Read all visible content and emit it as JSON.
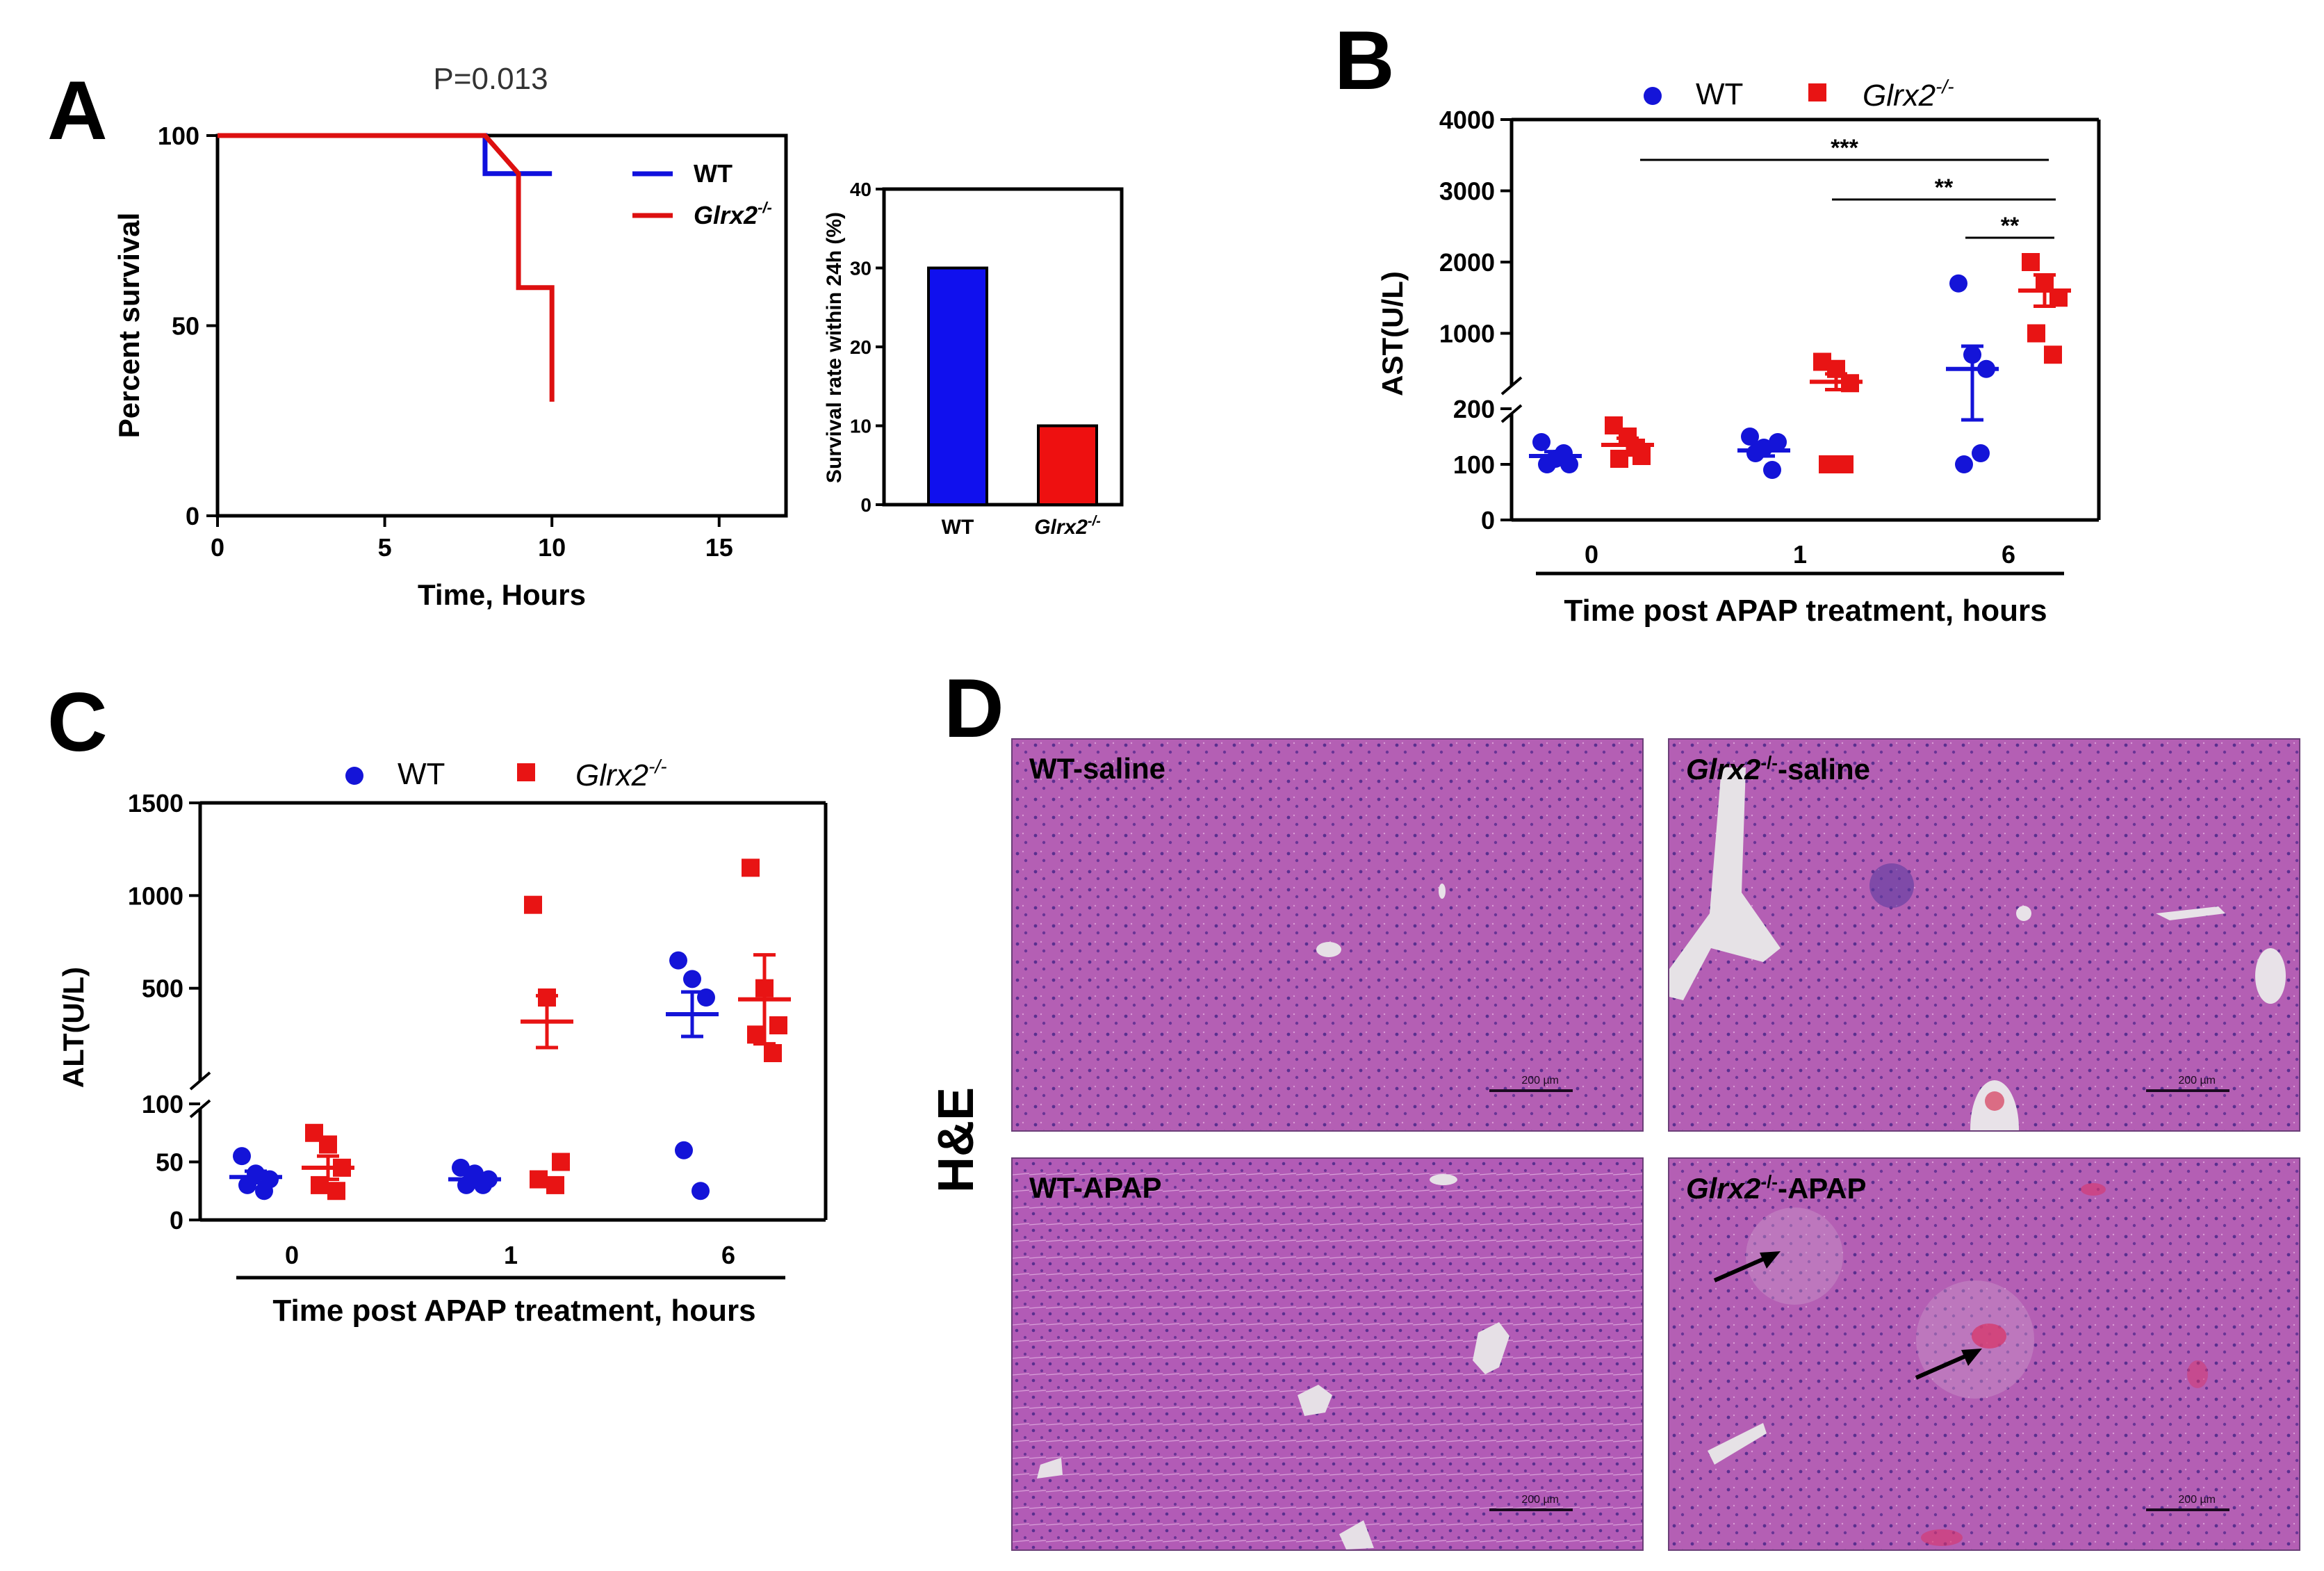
{
  "chart_data": [
    {
      "panel": "A",
      "type": "line",
      "title": "P=0.013",
      "xlabel": "Time, Hours",
      "ylabel": "Percent survival",
      "xlim": [
        0,
        17
      ],
      "ylim": [
        0,
        100
      ],
      "xticks": [
        0,
        5,
        10,
        15
      ],
      "yticks": [
        0,
        50,
        100
      ],
      "series": [
        {
          "name": "WT",
          "color": "#1010dd",
          "x": [
            0,
            8,
            8,
            10
          ],
          "y": [
            100,
            100,
            90,
            90
          ]
        },
        {
          "name": "Glrx2-/-",
          "color": "#dd1010",
          "x": [
            0,
            8,
            9,
            9,
            10,
            10
          ],
          "y": [
            100,
            100,
            90,
            60,
            60,
            30
          ]
        }
      ],
      "legend": {
        "wt": "WT",
        "ko_base": "Glrx2",
        "ko_sup": "-/-"
      }
    },
    {
      "panel": "A-inset",
      "type": "bar",
      "ylabel": "Survival rate within 24h (%)",
      "ylim": [
        0,
        40
      ],
      "yticks": [
        0,
        10,
        20,
        30,
        40
      ],
      "categories": [
        "WT",
        "Glrx2-/-"
      ],
      "values": [
        30,
        10
      ],
      "colors": [
        "#1010ee",
        "#ee1010"
      ]
    },
    {
      "panel": "B",
      "type": "scatter",
      "ylabel": "AST(U/L)",
      "xlabel": "Time post APAP treatment, hours",
      "categories": [
        "0",
        "1",
        "6"
      ],
      "y_axis": "broken",
      "lower_range": [
        0,
        200
      ],
      "lower_ticks": [
        0,
        100,
        200
      ],
      "upper_range": [
        0,
        4000
      ],
      "upper_ticks": [
        1000,
        2000,
        3000,
        4000
      ],
      "series": [
        {
          "name": "WT",
          "color": "#1414d8",
          "marker": "circle",
          "groups": [
            [
              140,
              110,
              100,
              100,
              120
            ],
            [
              150,
              130,
              140,
              120,
              90
            ],
            [
              1700,
              700,
              500,
              100,
              120
            ]
          ],
          "mean": [
            115,
            125,
            500
          ],
          "sem": [
            8,
            10,
            320
          ]
        },
        {
          "name": "Glrx2-/-",
          "color": "#e81414",
          "marker": "square",
          "groups": [
            [
              170,
              150,
              115,
              110,
              130
            ],
            [
              600,
              500,
              300,
              100,
              100
            ],
            [
              2000,
              1700,
              1500,
              1000,
              700
            ]
          ],
          "mean": [
            135,
            320,
            1600
          ],
          "sem": [
            12,
            110,
            220
          ]
        }
      ],
      "significance": [
        "***",
        "**",
        "**"
      ],
      "legend": {
        "wt": "WT",
        "ko_base": "Glrx2",
        "ko_sup": "-/-"
      }
    },
    {
      "panel": "C",
      "type": "scatter",
      "ylabel": "ALT(U/L)",
      "xlabel": "Time post APAP treatment, hours",
      "categories": [
        "0",
        "1",
        "6"
      ],
      "y_axis": "broken",
      "lower_range": [
        0,
        100
      ],
      "lower_ticks": [
        0,
        50,
        100
      ],
      "upper_range": [
        0,
        1500
      ],
      "upper_ticks": [
        500,
        1000,
        1500
      ],
      "series": [
        {
          "name": "WT",
          "color": "#1414d8",
          "marker": "circle",
          "groups": [
            [
              55,
              40,
              35,
              30,
              25
            ],
            [
              45,
              40,
              35,
              30,
              30
            ],
            [
              650,
              550,
              450,
              60,
              25
            ]
          ],
          "mean": [
            37,
            35,
            360
          ],
          "sem": [
            5,
            3,
            120
          ]
        },
        {
          "name": "Glrx2-/-",
          "color": "#e81414",
          "marker": "square",
          "groups": [
            [
              75,
              65,
              45,
              30,
              25
            ],
            [
              950,
              450,
              50,
              35,
              30
            ],
            [
              1150,
              500,
              300,
              250,
              150
            ]
          ],
          "mean": [
            45,
            320,
            440
          ],
          "sem": [
            10,
            140,
            240
          ]
        }
      ],
      "legend": {
        "wt": "WT",
        "ko_base": "Glrx2",
        "ko_sup": "-/-"
      }
    }
  ],
  "panel_letters": [
    "A",
    "B",
    "C",
    "D"
  ],
  "stain_label": "H&E",
  "histology": {
    "scale_text": "200 µm",
    "panels": [
      {
        "label": "WT-saline"
      },
      {
        "label_base": "Glrx2",
        "label_sup": "-/-",
        "label_rest": "-saline"
      },
      {
        "label": "WT-APAP"
      },
      {
        "label_base": "Glrx2",
        "label_sup": "-/-",
        "label_rest": "-APAP"
      }
    ]
  }
}
